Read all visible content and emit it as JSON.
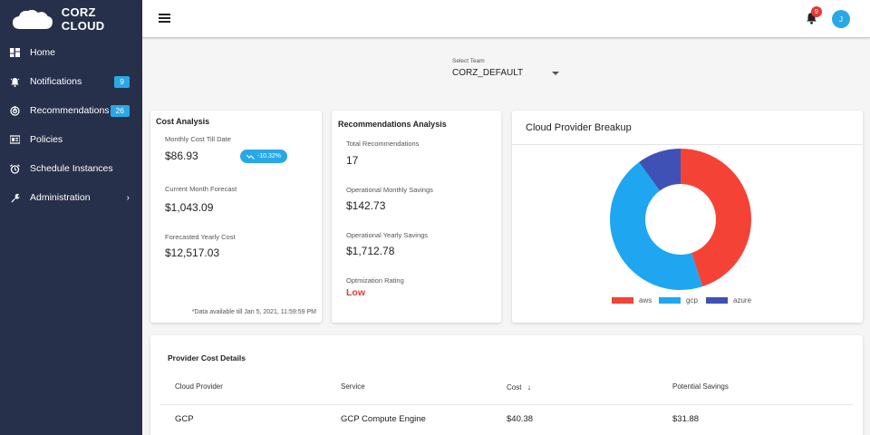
{
  "brand": {
    "name": "CORZ CLOUD"
  },
  "sidebar": {
    "items": [
      {
        "label": "Home",
        "icon": "dashboard-icon"
      },
      {
        "label": "Notifications",
        "icon": "bell-icon",
        "badge": "9"
      },
      {
        "label": "Recommendations",
        "icon": "recommendations-icon",
        "badge": "26"
      },
      {
        "label": "Policies",
        "icon": "policies-icon"
      },
      {
        "label": "Schedule Instances",
        "icon": "alarm-clock-icon"
      },
      {
        "label": "Administration",
        "icon": "wrench-icon",
        "chevron": "›"
      }
    ]
  },
  "topbar": {
    "notification_count": "9",
    "avatar_initial": "J"
  },
  "team_select": {
    "caption": "Select Team",
    "value": "CORZ_DEFAULT"
  },
  "cost_analysis": {
    "title": "Cost Analysis",
    "monthly_label": "Monthly Cost Till Date",
    "monthly_value": "$86.93",
    "trend": "-10.32%",
    "forecast_label": "Current Month Forecast",
    "forecast_value": "$1,043.09",
    "yearly_label": "Forecasted Yearly Cost",
    "yearly_value": "$12,517.03",
    "footnote": "*Data available till Jan 5, 2021, 11:59:59 PM"
  },
  "recommendations_analysis": {
    "title": "Recommendations Analysis",
    "total_label": "Total Recommendations",
    "total_value": "17",
    "monthly_label": "Operational Monthly Savings",
    "monthly_value": "$142.73",
    "yearly_label": "Operational Yearly Savings",
    "yearly_value": "$1,712.78",
    "rating_label": "Optmization Rating",
    "rating_value": "Low"
  },
  "cloud_breakup": {
    "title": "Cloud Provider Breakup",
    "legend": [
      "aws",
      "gcp",
      "azure"
    ]
  },
  "chart_data": {
    "type": "pie",
    "series": [
      {
        "name": "aws",
        "value": 45
      },
      {
        "name": "gcp",
        "value": 45
      },
      {
        "name": "azure",
        "value": 10
      }
    ],
    "colors": {
      "aws": "#f44336",
      "gcp": "#1ea7f0",
      "azure": "#3f51b5"
    }
  },
  "provider_cost_details": {
    "title": "Provider Cost Details",
    "columns": [
      "Cloud Provider",
      "Service",
      "Cost",
      "Potential Savings"
    ],
    "sort_indicator": "↓",
    "rows": [
      [
        "GCP",
        "GCP Compute Engine",
        "$40.38",
        "$31.88"
      ]
    ]
  },
  "colors": {
    "sidebar_bg": "#27304a",
    "accent": "#29a8e6",
    "danger": "#e53935"
  }
}
